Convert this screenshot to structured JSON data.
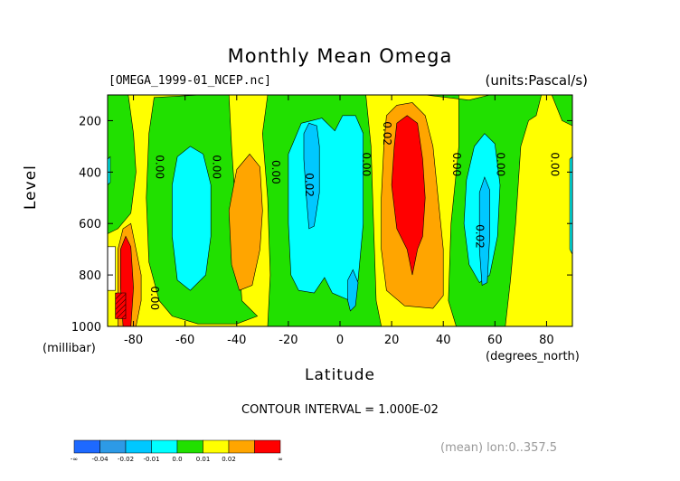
{
  "chart_data": {
    "type": "heatmap",
    "title": "Monthly Mean Omega",
    "file_label": "[OMEGA_1999-01_NCEP.nc]",
    "units_label": "(units:Pascal/s)",
    "xlabel": "Latitude",
    "x_unit": "(degrees_north)",
    "ylabel": "Level",
    "y_unit": "(millibar)",
    "x_ticks": [
      "-80",
      "-60",
      "-40",
      "-20",
      "0",
      "20",
      "40",
      "60",
      "80"
    ],
    "x_tick_values": [
      -80,
      -60,
      -40,
      -20,
      0,
      20,
      40,
      60,
      80
    ],
    "y_ticks": [
      "200",
      "400",
      "600",
      "800",
      "1000"
    ],
    "y_tick_values": [
      200,
      400,
      600,
      800,
      1000
    ],
    "xlim": [
      -90,
      90
    ],
    "ylim": [
      100,
      1000
    ],
    "y_inverted": true,
    "contour_interval_text": "CONTOUR INTERVAL = 1.000E-02",
    "mean_text": "(mean) lon:0..357.5",
    "contour_labels": [
      {
        "text": "0.00",
        "lat": -70,
        "level": 380
      },
      {
        "text": "0.00",
        "lat": -48,
        "level": 380
      },
      {
        "text": "0.00",
        "lat": -25,
        "level": 400
      },
      {
        "text": "0.02",
        "lat": -12,
        "level": 450
      },
      {
        "text": "0.00",
        "lat": 10,
        "level": 370
      },
      {
        "text": "0.02",
        "lat": 18,
        "level": 250
      },
      {
        "text": "0.00",
        "lat": 45,
        "level": 370
      },
      {
        "text": "0.00",
        "lat": 62,
        "level": 370
      },
      {
        "text": "0.02",
        "lat": 54,
        "level": 650
      },
      {
        "text": "0.00",
        "lat": 83,
        "level": 370
      },
      {
        "text": "0.00",
        "lat": -72,
        "level": 890
      }
    ],
    "colorbar": {
      "bins": [
        {
          "color": "#1e69ff",
          "label": "-∞"
        },
        {
          "color": "#2d9ae6",
          "label": "-0.04"
        },
        {
          "color": "#00c8ff",
          "label": "-0.02"
        },
        {
          "color": "#00ffff",
          "label": "-0.01"
        },
        {
          "color": "#21e000",
          "label": "0.0"
        },
        {
          "color": "#ffff00",
          "label": "0.01"
        },
        {
          "color": "#ffa500",
          "label": "0.02"
        },
        {
          "color": "#ff0000",
          "label": "∞"
        }
      ]
    },
    "regions": [
      {
        "level": "neg1",
        "color": "#00ffff",
        "lat": [
          [
            -58,
            -48
          ],
          [
            -51,
            -50
          ]
        ],
        "note": "band"
      },
      {
        "level": "neg1",
        "color": "#00ffff"
      }
    ]
  }
}
